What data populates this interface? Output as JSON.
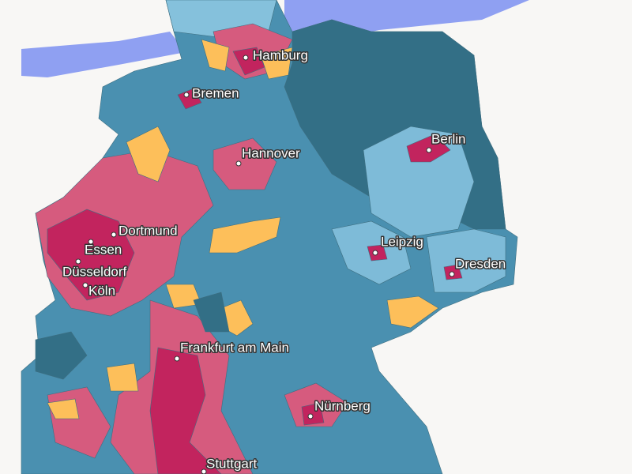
{
  "cities": [
    {
      "name": "Hamburg"
    },
    {
      "name": "Bremen"
    },
    {
      "name": "Hannover"
    },
    {
      "name": "Berlin"
    },
    {
      "name": "Dortmund"
    },
    {
      "name": "Essen"
    },
    {
      "name": "Düsseldorf"
    },
    {
      "name": "Köln"
    },
    {
      "name": "Leipzig"
    },
    {
      "name": "Dresden"
    },
    {
      "name": "Frankfurt am Main"
    },
    {
      "name": "Nürnberg"
    },
    {
      "name": "Stuttgart"
    }
  ]
}
